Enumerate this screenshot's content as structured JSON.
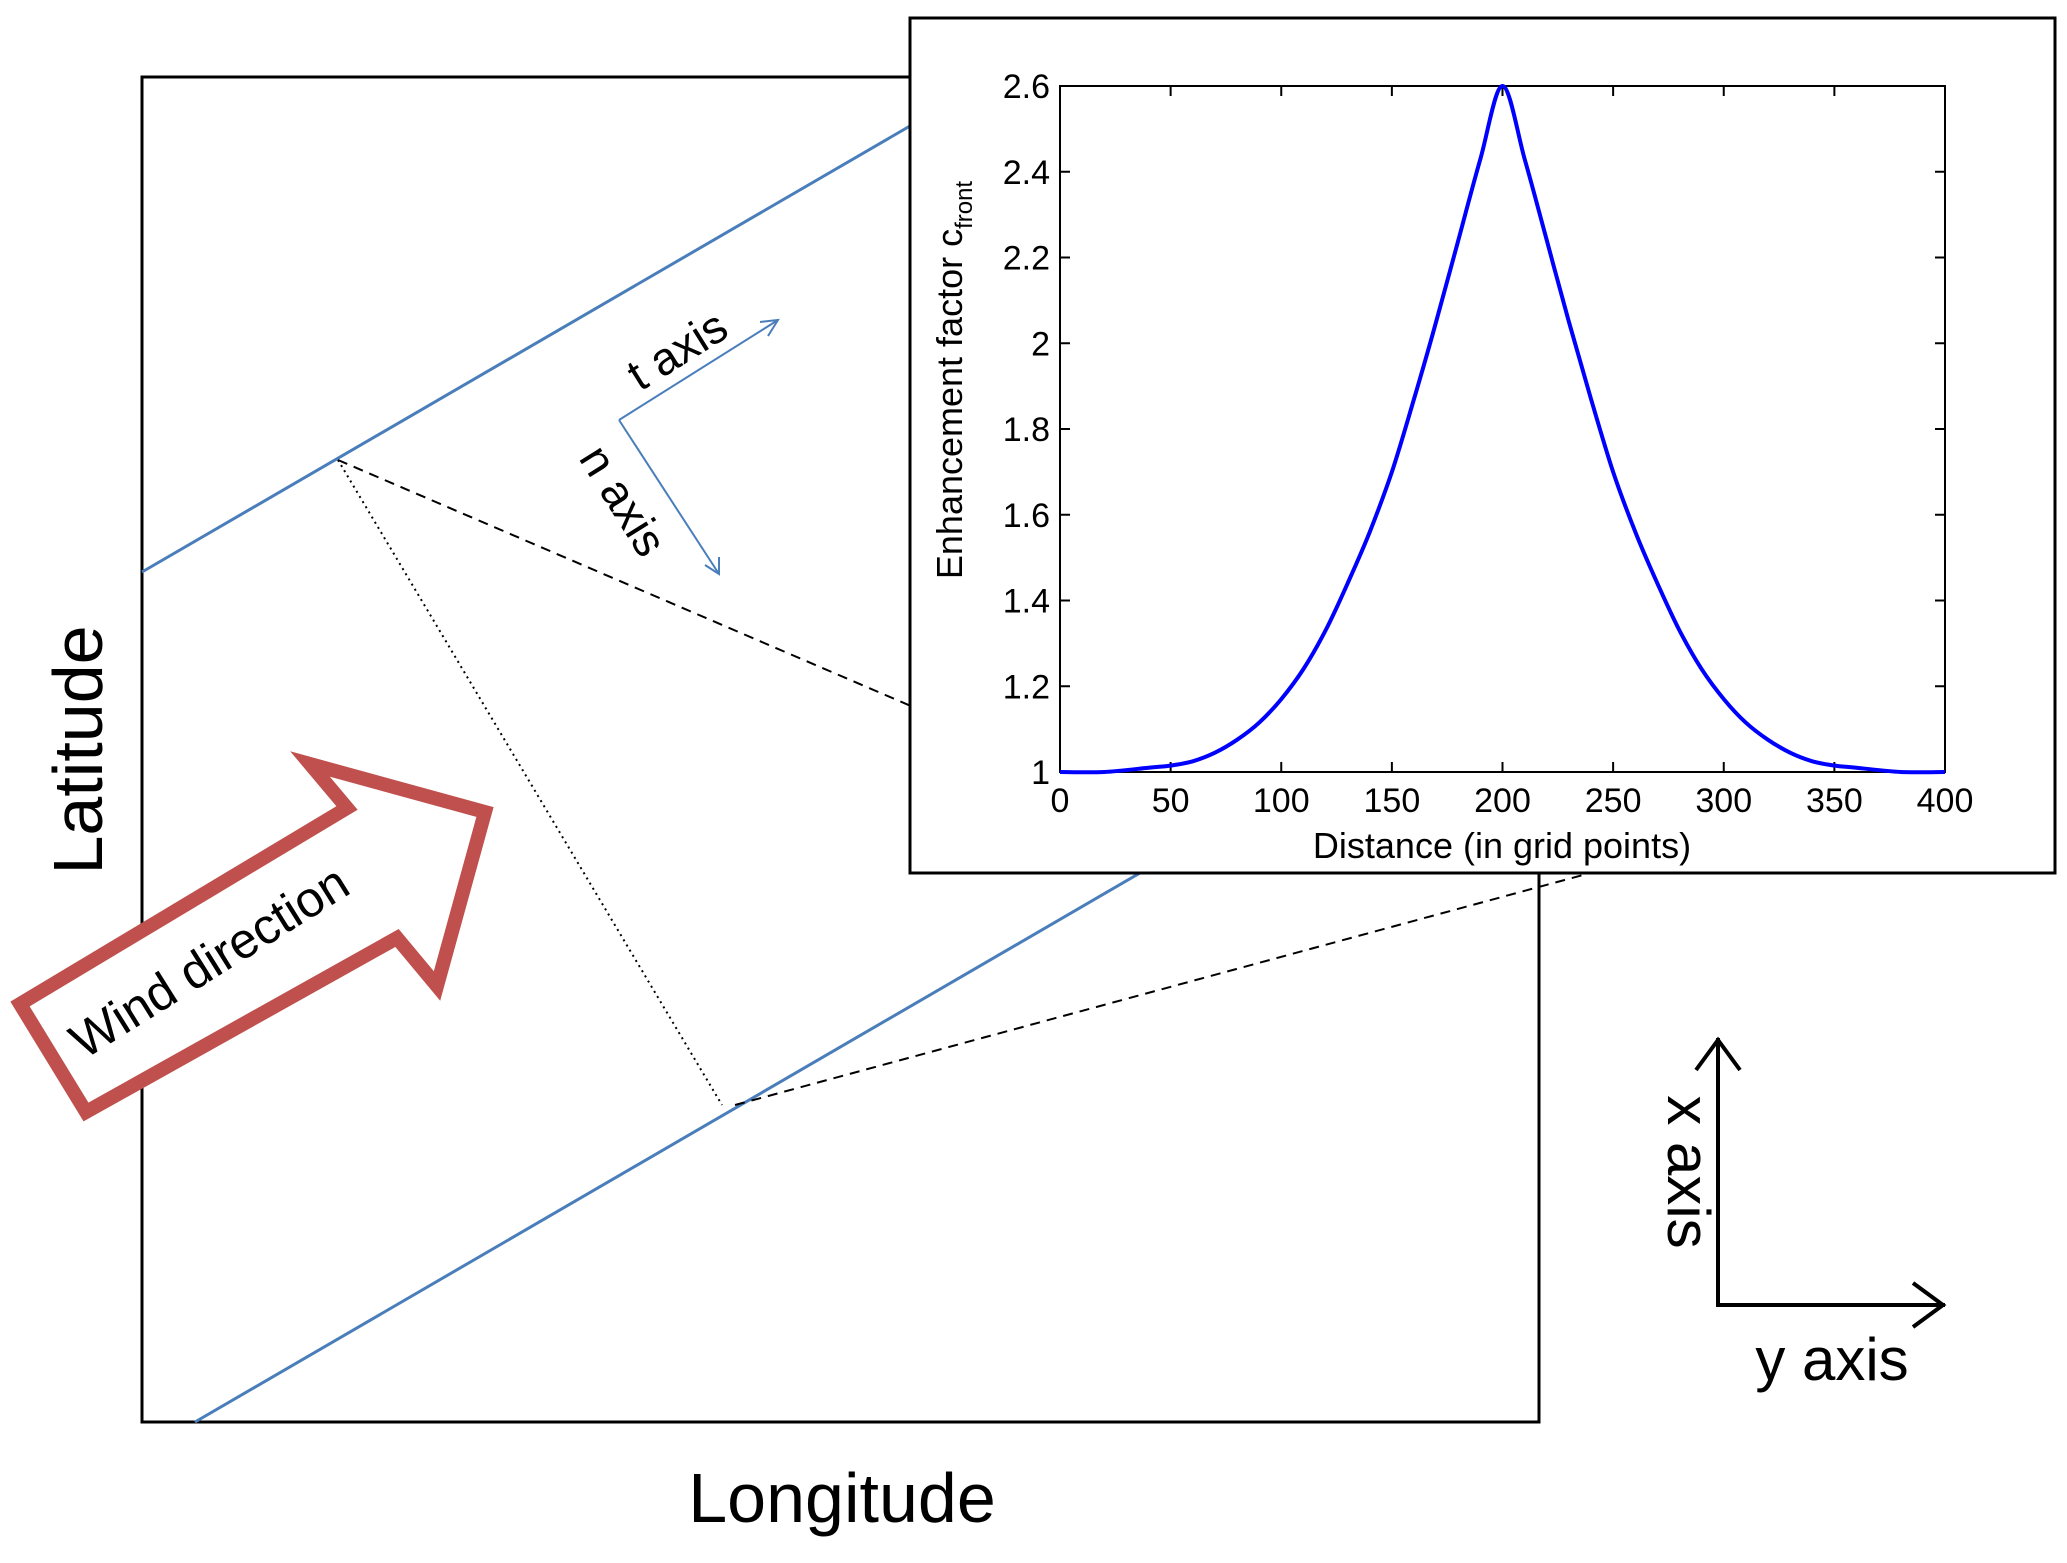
{
  "diagram": {
    "main_xlabel": "Longitude",
    "main_ylabel": "Latitude",
    "wind_label": "Wind direction",
    "t_axis_label": "t axis",
    "n_axis_label": "n axis",
    "x_axis_label": "x axis",
    "y_axis_label": "y axis"
  },
  "colors": {
    "front_line": "#4a7ebb",
    "wind_arrow": "#c0504d",
    "curve": "#0000ff",
    "frame": "#000000"
  },
  "chart_data": {
    "type": "line",
    "title": "",
    "xlabel": "Distance (in grid points)",
    "ylabel_main": "Enhancement factor c",
    "ylabel_sub": "front",
    "xlim": [
      0,
      400
    ],
    "ylim": [
      1,
      2.6
    ],
    "xticks": [
      0,
      50,
      100,
      150,
      200,
      250,
      300,
      350,
      400
    ],
    "yticks": [
      1,
      1.2,
      1.4,
      1.6,
      1.8,
      2,
      2.2,
      2.4,
      2.6
    ],
    "ytick_labels": [
      "1",
      "1.2",
      "1.4",
      "1.6",
      "1.8",
      "2",
      "2.2",
      "2.4",
      "2.6"
    ],
    "grid": false,
    "series": [
      {
        "x": [
          0,
          20,
          40,
          50,
          60,
          70,
          80,
          90,
          100,
          110,
          120,
          130,
          140,
          150,
          160,
          170,
          180,
          190,
          200,
          210,
          220,
          230,
          240,
          250,
          260,
          270,
          280,
          290,
          300,
          310,
          320,
          330,
          340,
          350,
          360,
          380,
          400
        ],
        "values": [
          1.0,
          1.0,
          1.01,
          1.015,
          1.025,
          1.045,
          1.075,
          1.115,
          1.17,
          1.24,
          1.33,
          1.44,
          1.56,
          1.7,
          1.87,
          2.05,
          2.24,
          2.43,
          2.6,
          2.43,
          2.24,
          2.05,
          1.87,
          1.7,
          1.56,
          1.44,
          1.33,
          1.24,
          1.17,
          1.115,
          1.075,
          1.045,
          1.025,
          1.015,
          1.01,
          1.0,
          1.0
        ]
      }
    ]
  }
}
